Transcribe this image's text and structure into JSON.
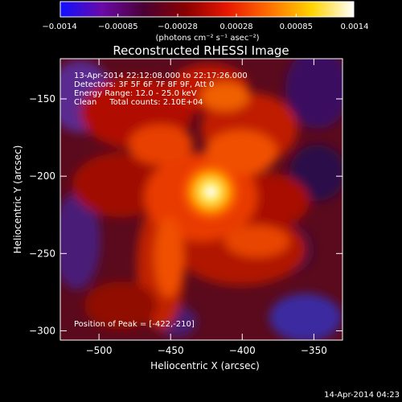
{
  "colorbar": {
    "tick_labels": [
      "-0.0014",
      "-0.00085",
      "-0.00028",
      "0.00028",
      "0.00085",
      "0.0014"
    ],
    "unit_label": "(photons cm⁻² s⁻¹ asec⁻²)",
    "range": [
      -0.0014,
      0.0014
    ],
    "colors": [
      "#1010ff",
      "#6a0aa8",
      "#4a0033",
      "#8a0000",
      "#e81800",
      "#ff7000",
      "#ffd400",
      "#ffffff"
    ]
  },
  "chart_data": {
    "type": "heatmap",
    "title": "Reconstructed RHESSI Image",
    "xlabel": "Heliocentric X (arcsec)",
    "ylabel": "Heliocentric Y (arcsec)",
    "xlim": [
      -527,
      -330
    ],
    "ylim": [
      -306,
      -124
    ],
    "x_ticks": [
      -500,
      -450,
      -400,
      -350
    ],
    "x_tick_labels": [
      "−500",
      "−450",
      "−400",
      "−350"
    ],
    "y_ticks": [
      -150,
      -200,
      -250,
      -300
    ],
    "y_tick_labels": [
      "−150",
      "−200",
      "−250",
      "−300"
    ],
    "peak": {
      "x": -422,
      "y": -210
    },
    "annotations": [
      "13-Apr-2014 22:12:08.000 to 22:17:26.000",
      "Detectors: 3F 5F 6F 7F 8F 9F, Att 0",
      "Energy Range: 12.0 - 25.0 keV",
      "Clean     Total counts: 2.10E+04"
    ],
    "peak_label": "Position of Peak = [-422,-210]"
  },
  "footer": {
    "timestamp": "14-Apr-2014 04:23"
  }
}
